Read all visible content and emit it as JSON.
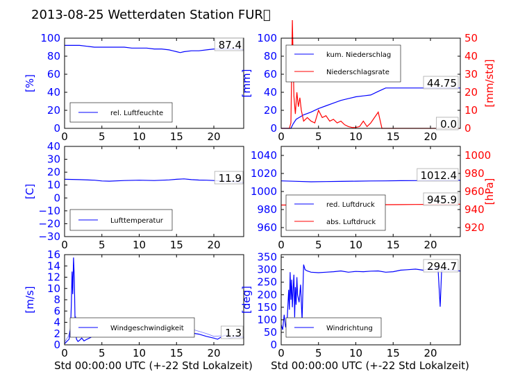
{
  "title": "2013-08-25 Wetterdaten Station FUR\u0000",
  "colors": {
    "left": "#0000ff",
    "right": "#ff0000"
  },
  "xlabel": "Std 00:00:00 UTC (+-22 Std Lokalzeit)",
  "chart_data": [
    {
      "id": "humidity",
      "type": "line",
      "ylabel": "[%]",
      "xlim": [
        0,
        24
      ],
      "ylim": [
        0,
        100
      ],
      "xticks": [
        "0",
        "5",
        "10",
        "15",
        "20"
      ],
      "yticks": [
        "0",
        "20",
        "40",
        "60",
        "80",
        "100"
      ],
      "legend": "rel. Luftfeuchte",
      "current": "87.4",
      "series": [
        {
          "name": "rel. Luftfeuchte",
          "x": [
            0,
            1,
            2,
            3,
            4,
            5,
            6,
            7,
            8,
            9,
            10,
            11,
            12,
            13,
            14,
            14.5,
            15,
            15.5,
            16,
            17,
            18,
            19,
            20,
            21,
            22,
            23,
            24
          ],
          "y": [
            92,
            92,
            92,
            91,
            90,
            90,
            90,
            90,
            90,
            89,
            89,
            89,
            88,
            88,
            87,
            86,
            85,
            84,
            85,
            86,
            86,
            87,
            88,
            88,
            88,
            88,
            87
          ]
        }
      ]
    },
    {
      "id": "precip",
      "type": "line",
      "ylabel": "[mm]",
      "y2label": "[mm/std]",
      "xlim": [
        0,
        24
      ],
      "ylim": [
        0,
        100
      ],
      "y2lim": [
        0,
        50
      ],
      "xticks": [
        "0",
        "5",
        "10",
        "15",
        "20"
      ],
      "yticks": [
        "0",
        "20",
        "40",
        "60",
        "80",
        "100"
      ],
      "y2ticks": [
        "0",
        "10",
        "20",
        "30",
        "40",
        "50"
      ],
      "legend": [
        "kum. Niederschlag",
        "Niederschlagsrate"
      ],
      "current": [
        "44.75",
        "0.0"
      ],
      "series": [
        {
          "name": "kum. Niederschlag",
          "axis": "left",
          "x": [
            0,
            1.3,
            1.6,
            2,
            3,
            4,
            5,
            6,
            7,
            8,
            9,
            10,
            11,
            12,
            13,
            14,
            15,
            16,
            17,
            18,
            19,
            20,
            21,
            22,
            23,
            24
          ],
          "y": [
            0,
            0,
            5,
            10,
            15,
            18,
            22,
            25,
            28,
            31,
            33,
            35,
            36,
            37,
            41,
            44.75,
            44.75,
            44.75,
            44.75,
            44.75,
            44.75,
            44.75,
            44.75,
            44.75,
            44.75,
            44.75
          ]
        },
        {
          "name": "Niederschlagsrate",
          "axis": "right",
          "x": [
            0,
            1.1,
            1.3,
            1.5,
            1.7,
            1.9,
            2.1,
            2.3,
            2.5,
            2.7,
            3,
            3.5,
            4,
            4.5,
            5,
            5.5,
            6,
            6.5,
            7,
            7.5,
            8,
            8.5,
            9,
            9.5,
            10,
            10.5,
            11,
            11.5,
            12,
            12.5,
            13,
            13.5,
            14,
            24
          ],
          "y": [
            0,
            0,
            3,
            60,
            18,
            8,
            20,
            12,
            17,
            10,
            4,
            6,
            4,
            3,
            10,
            6,
            7,
            4,
            5,
            3,
            4,
            2,
            1,
            0.5,
            0.5,
            1,
            4,
            1,
            3,
            6,
            9,
            0,
            0,
            0
          ]
        }
      ]
    },
    {
      "id": "temperature",
      "type": "line",
      "ylabel": "[C]",
      "xlim": [
        0,
        24
      ],
      "ylim": [
        -30,
        40
      ],
      "xticks": [
        "0",
        "5",
        "10",
        "15",
        "20"
      ],
      "yticks": [
        "−30",
        "−20",
        "−10",
        "0",
        "10",
        "20",
        "30",
        "40"
      ],
      "legend": "Lufttemperatur",
      "current": "11.9",
      "series": [
        {
          "name": "Lufttemperatur",
          "x": [
            0,
            2,
            4,
            5,
            6,
            8,
            10,
            12,
            14,
            15,
            16,
            17,
            18,
            19,
            20,
            21,
            22,
            23,
            24
          ],
          "y": [
            14.5,
            14.2,
            13.8,
            13.2,
            13.0,
            13.5,
            13.8,
            13.5,
            14.0,
            14.5,
            14.8,
            14.2,
            13.9,
            13.8,
            13.5,
            13.0,
            12.8,
            12.5,
            11.9
          ]
        }
      ]
    },
    {
      "id": "pressure",
      "type": "line",
      "ylabel": "",
      "y2label": "[hPa]",
      "xlim": [
        0,
        24
      ],
      "ylim": [
        950,
        1050
      ],
      "y2lim": [
        910,
        1010
      ],
      "xticks": [
        "0",
        "5",
        "10",
        "15",
        "20"
      ],
      "yticks": [
        "960",
        "980",
        "1000",
        "1020",
        "1040"
      ],
      "y2ticks": [
        "920",
        "940",
        "960",
        "980",
        "1000"
      ],
      "legend": [
        "red. Luftdruck",
        "abs. Luftdruck"
      ],
      "current": [
        "1012.4",
        "945.9"
      ],
      "series": [
        {
          "name": "red. Luftdruck",
          "axis": "left",
          "x": [
            0,
            2,
            4,
            6,
            8,
            10,
            12,
            14,
            16,
            18,
            20,
            22,
            24
          ],
          "y": [
            1011.8,
            1011.3,
            1010.8,
            1011.0,
            1011.2,
            1011.5,
            1011.7,
            1011.8,
            1012.0,
            1012.1,
            1012.2,
            1012.3,
            1012.4
          ]
        },
        {
          "name": "abs. Luftdruck",
          "axis": "right",
          "x": [
            0,
            2,
            4,
            6,
            8,
            10,
            12,
            14,
            16,
            18,
            20,
            22,
            24
          ],
          "y": [
            945.0,
            945.0,
            944.8,
            945.0,
            945.0,
            945.2,
            945.3,
            945.4,
            945.5,
            945.6,
            945.7,
            945.8,
            945.9
          ]
        }
      ]
    },
    {
      "id": "wind",
      "type": "line",
      "ylabel": "[m/s]",
      "xlim": [
        0,
        24
      ],
      "ylim": [
        0,
        16
      ],
      "xticks": [
        "0",
        "5",
        "10",
        "15",
        "20"
      ],
      "yticks": [
        "0",
        "2",
        "4",
        "6",
        "8",
        "10",
        "12",
        "14",
        "16"
      ],
      "legend": "Windgeschwindigkeit",
      "current": "1.3",
      "series": [
        {
          "name": "Windgeschwindigkeit",
          "x": [
            0,
            0.3,
            0.6,
            0.8,
            0.9,
            1.0,
            1.1,
            1.2,
            1.3,
            1.4,
            1.5,
            1.6,
            1.8,
            2.0,
            2.3,
            2.6,
            3,
            3.5,
            4,
            5,
            6,
            7,
            8,
            9,
            10,
            11,
            12,
            13,
            14,
            15,
            16,
            17,
            18,
            19,
            20,
            20.5,
            21,
            21.5,
            22,
            23,
            24
          ],
          "y": [
            0.2,
            0.6,
            1.0,
            3,
            7,
            13,
            9,
            15.5,
            12,
            5,
            2,
            1.0,
            0.6,
            0.8,
            1.2,
            0.7,
            1.0,
            1.3,
            1.8,
            2.0,
            2.2,
            2.5,
            2.6,
            2.4,
            2.3,
            2.4,
            2.4,
            2.3,
            2.2,
            2.0,
            2.2,
            2.1,
            1.9,
            1.5,
            1.2,
            1.0,
            1.4,
            1.7,
            1.2,
            1.4,
            1.3
          ]
        },
        {
          "name": "",
          "x": [
            0,
            0.5,
            1,
            1.5,
            2,
            3,
            4,
            5,
            6,
            7,
            8,
            9,
            10,
            11,
            12,
            13,
            14,
            15,
            16,
            17,
            18,
            19,
            20,
            21,
            22,
            23,
            24
          ],
          "y": [
            0.5,
            1.5,
            4,
            5,
            2.5,
            2.0,
            3.0,
            3.0,
            3.4,
            3.6,
            3.2,
            3.5,
            3.3,
            3.4,
            3.3,
            3.5,
            3.2,
            3.3,
            3.0,
            2.8,
            2.4,
            2.0,
            1.5,
            1.6,
            1.8,
            1.6,
            1.5
          ]
        }
      ]
    },
    {
      "id": "winddir",
      "type": "line",
      "ylabel": "[deg]",
      "xlim": [
        0,
        24
      ],
      "ylim": [
        0,
        360
      ],
      "xticks": [
        "0",
        "5",
        "10",
        "15",
        "20"
      ],
      "yticks": [
        "0",
        "50",
        "100",
        "150",
        "200",
        "250",
        "300",
        "350"
      ],
      "legend": "Windrichtung",
      "current": "294.7",
      "series": [
        {
          "name": "Windrichtung",
          "x": [
            0,
            0.2,
            0.4,
            0.6,
            0.8,
            1.0,
            1.1,
            1.2,
            1.3,
            1.4,
            1.5,
            1.6,
            1.7,
            1.8,
            1.9,
            2.0,
            2.1,
            2.2,
            2.4,
            2.6,
            2.8,
            3.0,
            3.2,
            3.5,
            4,
            5,
            6,
            7,
            8,
            9,
            10,
            11,
            12,
            13,
            14,
            15,
            16,
            17,
            18,
            19,
            20,
            20.5,
            21,
            21.3,
            21.5,
            21.7,
            22,
            23,
            24
          ],
          "y": [
            80,
            60,
            120,
            70,
            100,
            220,
            140,
            290,
            180,
            260,
            150,
            220,
            280,
            110,
            230,
            160,
            270,
            200,
            170,
            240,
            100,
            320,
            300,
            295,
            290,
            288,
            290,
            292,
            295,
            290,
            293,
            292,
            294,
            295,
            290,
            292,
            298,
            300,
            302,
            298,
            305,
            300,
            310,
            152,
            300,
            298,
            300,
            298,
            294.7
          ]
        }
      ]
    }
  ]
}
